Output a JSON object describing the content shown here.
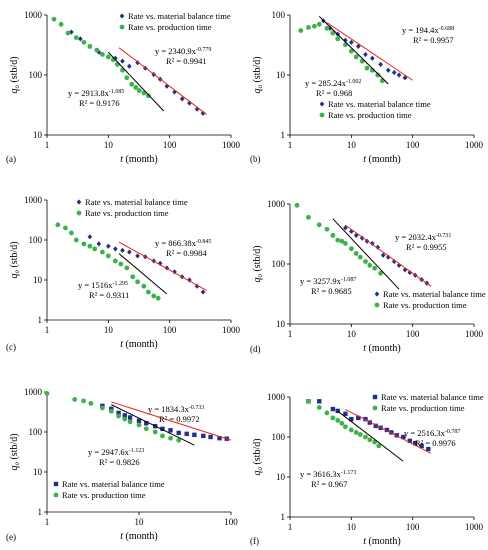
{
  "colors": {
    "material_balance": "#1f2f8c",
    "production": "#3cb34a",
    "fit_material_balance": "#e8281e",
    "fit_production": "#000000"
  },
  "chart_data": [
    {
      "panel": "(a)",
      "type": "scatter",
      "xscale": "log",
      "yscale": "log",
      "xlim": [
        1,
        1000
      ],
      "ylim": [
        10,
        1000
      ],
      "xticks": [
        "1",
        "10",
        "100",
        "1000"
      ],
      "yticks": [
        "10",
        "100",
        "1000"
      ],
      "xlabel_italic": "t",
      "xlabel_unit": "(month)",
      "ylabel_italic": "q",
      "ylabel_sub": "o",
      "ylabel_unit": "(stb/d)",
      "series": [
        {
          "name": "Rate vs. material balance time",
          "marker": "diamond",
          "fit_a": 2340.9,
          "fit_b": -0.779,
          "fit_range": [
            15,
            400
          ],
          "x": [
            2.5,
            3.5,
            5,
            7,
            10,
            13,
            17,
            22,
            30,
            40,
            55,
            70,
            90,
            120,
            160,
            210,
            280,
            350
          ],
          "y": [
            520,
            400,
            300,
            240,
            200,
            190,
            170,
            140,
            160,
            130,
            102,
            85,
            65,
            52,
            40,
            34,
            27,
            23
          ]
        },
        {
          "name": "Rate vs. production time",
          "marker": "circle",
          "fit_a": 2913.8,
          "fit_b": -1.085,
          "fit_range": [
            10,
            80
          ],
          "x": [
            1.3,
            1.7,
            2.2,
            3,
            4,
            5,
            6.5,
            8,
            10,
            12,
            14,
            17,
            20,
            24,
            28,
            32,
            38,
            45
          ],
          "y": [
            850,
            700,
            500,
            420,
            350,
            300,
            260,
            220,
            200,
            180,
            150,
            120,
            90,
            70,
            62,
            55,
            50,
            45
          ]
        }
      ],
      "equations": [
        {
          "label": "y = 2340.9x",
          "exp": "-0.779",
          "r2": "R² = 0.9941"
        },
        {
          "label": "y = 2913.8x",
          "exp": "-1.085",
          "r2": "R² = 0.9176"
        }
      ]
    },
    {
      "panel": "(b)",
      "type": "scatter",
      "xscale": "log",
      "yscale": "log",
      "xlim": [
        1,
        1000
      ],
      "ylim": [
        1,
        100
      ],
      "xticks": [
        "1",
        "10",
        "100",
        "1000"
      ],
      "yticks": [
        "1",
        "10",
        "100"
      ],
      "xlabel_italic": "t",
      "xlabel_unit": "(month)",
      "ylabel_italic": "q",
      "ylabel_sub": "o",
      "ylabel_unit": "(stb/d)",
      "series": [
        {
          "name": "Rate vs. material balance time",
          "marker": "diamond",
          "fit_a": 194.4,
          "fit_b": -0.688,
          "fit_range": [
            4,
            100
          ],
          "x": [
            3.5,
            4.5,
            6,
            8,
            10,
            13,
            17,
            22,
            30,
            40,
            50,
            60,
            75
          ],
          "y": [
            80,
            60,
            48,
            38,
            35,
            30,
            22,
            19,
            15,
            12,
            11,
            10,
            9
          ]
        },
        {
          "name": "Rate vs. production time",
          "marker": "circle",
          "fit_a": 285.24,
          "fit_b": -1.002,
          "fit_range": [
            3,
            40
          ],
          "x": [
            1.5,
            2,
            2.5,
            3,
            4,
            5,
            6,
            8,
            10,
            12,
            15,
            18,
            22,
            27,
            32
          ],
          "y": [
            55,
            62,
            65,
            70,
            60,
            50,
            40,
            32,
            25,
            20,
            17,
            13,
            12,
            10,
            8
          ]
        }
      ],
      "equations": [
        {
          "label": "y = 194.4x",
          "exp": "-0.688",
          "r2": "R² = 0.9957"
        },
        {
          "label": "y = 285.24x",
          "exp": "-1.002",
          "r2": "R² = 0.968"
        }
      ]
    },
    {
      "panel": "(c)",
      "type": "scatter",
      "xscale": "log",
      "yscale": "log",
      "xlim": [
        1,
        1000
      ],
      "ylim": [
        1,
        1000
      ],
      "xticks": [
        "1",
        "10",
        "100",
        "1000"
      ],
      "yticks": [
        "1",
        "10",
        "100",
        "1000"
      ],
      "xlabel_italic": "t",
      "xlabel_unit": "(month)",
      "ylabel_italic": "q",
      "ylabel_sub": "o",
      "ylabel_unit": "(stb/d)",
      "series": [
        {
          "name": "Rate vs. material balance time",
          "marker": "diamond",
          "fit_a": 866.38,
          "fit_b": -0.845,
          "fit_range": [
            15,
            400
          ],
          "x": [
            5,
            7,
            10,
            13,
            17,
            22,
            30,
            40,
            55,
            70,
            90,
            120,
            160,
            210,
            280,
            350
          ],
          "y": [
            120,
            80,
            70,
            60,
            55,
            50,
            40,
            38,
            30,
            26,
            20,
            16,
            12,
            10,
            7,
            5
          ]
        },
        {
          "name": "Rate vs. production time",
          "marker": "circle",
          "fit_a": 1516,
          "fit_b": -1.295,
          "fit_range": [
            15,
            90
          ],
          "x": [
            1.5,
            2,
            2.5,
            3,
            4,
            5,
            6,
            8,
            10,
            13,
            16,
            20,
            25,
            30,
            38,
            45,
            55,
            65
          ],
          "y": [
            240,
            200,
            150,
            100,
            80,
            70,
            60,
            50,
            40,
            30,
            25,
            20,
            12,
            9,
            7,
            5,
            4,
            3.5
          ]
        }
      ],
      "equations": [
        {
          "label": "y = 866.38x",
          "exp": "-0.845",
          "r2": "R² = 0.9984"
        },
        {
          "label": "y = 1516x",
          "exp": "-1.295",
          "r2": "R² = 0.9311"
        }
      ]
    },
    {
      "panel": "(d)",
      "type": "scatter",
      "xscale": "log",
      "yscale": "log",
      "xlim": [
        1,
        1000
      ],
      "ylim": [
        10,
        1000
      ],
      "xticks": [
        "1",
        "10",
        "100",
        "1000"
      ],
      "yticks": [
        "10",
        "100",
        "1000"
      ],
      "xlabel_italic": "t",
      "xlabel_unit": "(month)",
      "ylabel_italic": "q",
      "ylabel_sub": "o",
      "ylabel_unit": "(stb/d)",
      "series": [
        {
          "name": "Rate vs. material balance time",
          "marker": "diamond",
          "fit_a": 2032.4,
          "fit_b": -0.731,
          "fit_range": [
            8,
            200
          ],
          "x": [
            8,
            10,
            12,
            15,
            18,
            22,
            27,
            33,
            40,
            50,
            60,
            75,
            90,
            110,
            140,
            170
          ],
          "y": [
            400,
            350,
            300,
            270,
            240,
            220,
            190,
            140,
            130,
            110,
            95,
            80,
            72,
            65,
            55,
            48
          ]
        },
        {
          "name": "Rate vs. production time",
          "marker": "circle",
          "fit_a": 3257.9,
          "fit_b": -1.087,
          "fit_range": [
            5,
            60
          ],
          "x": [
            1.3,
            2,
            3,
            4,
            5,
            6,
            7,
            8,
            10,
            12,
            14,
            17,
            20,
            24,
            30
          ],
          "y": [
            950,
            600,
            450,
            380,
            300,
            250,
            240,
            220,
            180,
            150,
            130,
            110,
            95,
            85,
            70
          ]
        }
      ],
      "equations": [
        {
          "label": "y = 2032.4x",
          "exp": "-0.731",
          "r2": "R² = 0.9955"
        },
        {
          "label": "y = 3257.9x",
          "exp": "-1.087",
          "r2": "R² = 0.9685"
        }
      ]
    },
    {
      "panel": "(e)",
      "type": "scatter",
      "xscale": "log",
      "yscale": "log",
      "xlim": [
        1,
        100
      ],
      "ylim": [
        1,
        1000
      ],
      "xticks": [
        "1",
        "10",
        "100"
      ],
      "yticks": [
        "1",
        "10",
        "100",
        "1000"
      ],
      "xlabel_italic": "t",
      "xlabel_unit": "(month)",
      "ylabel_italic": "q",
      "ylabel_sub": "o",
      "ylabel_unit": "(stb/d)",
      "series": [
        {
          "name": "Rate vs. material balance time",
          "marker": "square",
          "fit_a": 1834.3,
          "fit_b": -0.733,
          "fit_range": [
            5,
            100
          ],
          "x": [
            4,
            5,
            6,
            7,
            8,
            10,
            12,
            15,
            18,
            22,
            27,
            33,
            40,
            50,
            60,
            75,
            90
          ],
          "y": [
            450,
            380,
            300,
            260,
            230,
            190,
            165,
            140,
            120,
            110,
            95,
            90,
            85,
            80,
            75,
            70,
            68
          ]
        },
        {
          "name": "Rate vs. production time",
          "marker": "circle",
          "fit_a": 2947.6,
          "fit_b": -1.123,
          "fit_range": [
            5,
            40
          ],
          "x": [
            1,
            2,
            2.5,
            3,
            4,
            5,
            6,
            7,
            8,
            10,
            12,
            15,
            18,
            22,
            27
          ],
          "y": [
            920,
            650,
            600,
            520,
            400,
            330,
            250,
            210,
            180,
            150,
            120,
            100,
            80,
            70,
            62
          ]
        }
      ],
      "equations": [
        {
          "label": "y = 1834.3x",
          "exp": "-0.733",
          "r2": "R² = 0.9972"
        },
        {
          "label": "y = 2947.6x",
          "exp": "-1.123",
          "r2": "R² = 0.9826"
        }
      ]
    },
    {
      "panel": "(f)",
      "type": "scatter",
      "xscale": "log",
      "yscale": "log",
      "xlim": [
        1,
        1000
      ],
      "ylim": [
        1,
        1000
      ],
      "xticks": [
        "1",
        "10",
        "100",
        "1000"
      ],
      "yticks": [
        "1",
        "10",
        "100",
        "1000"
      ],
      "xlabel_italic": "t",
      "xlabel_unit": "(month)",
      "ylabel_italic": "q",
      "ylabel_sub": "o",
      "ylabel_unit": "(stb/d)",
      "series": [
        {
          "name": "Rate vs. material balance time",
          "marker": "square",
          "fit_a": 2516.3,
          "fit_b": -0.787,
          "fit_range": [
            8,
            200
          ],
          "x": [
            2,
            3,
            5,
            6,
            8,
            10,
            13,
            17,
            20,
            25,
            30,
            38,
            45,
            55,
            70,
            90,
            110,
            140,
            180
          ],
          "y": [
            780,
            780,
            500,
            450,
            380,
            280,
            300,
            280,
            230,
            190,
            170,
            150,
            130,
            110,
            100,
            80,
            70,
            60,
            50
          ]
        },
        {
          "name": "Rate vs. production time",
          "marker": "circle",
          "fit_a": 3616.3,
          "fit_b": -1.173,
          "fit_range": [
            6,
            70
          ],
          "x": [
            2,
            3,
            4,
            5,
            6,
            7,
            8,
            10,
            12,
            14,
            17,
            20,
            24,
            28
          ],
          "y": [
            780,
            550,
            400,
            300,
            260,
            220,
            180,
            150,
            130,
            115,
            100,
            85,
            75,
            60
          ]
        }
      ],
      "equations": [
        {
          "label": "y = 2516.3x",
          "exp": "-0.787",
          "r2": "R² = 0.9976"
        },
        {
          "label": "y = 3616.3x",
          "exp": "-1.173",
          "r2": "R² = 0.967"
        }
      ]
    }
  ]
}
